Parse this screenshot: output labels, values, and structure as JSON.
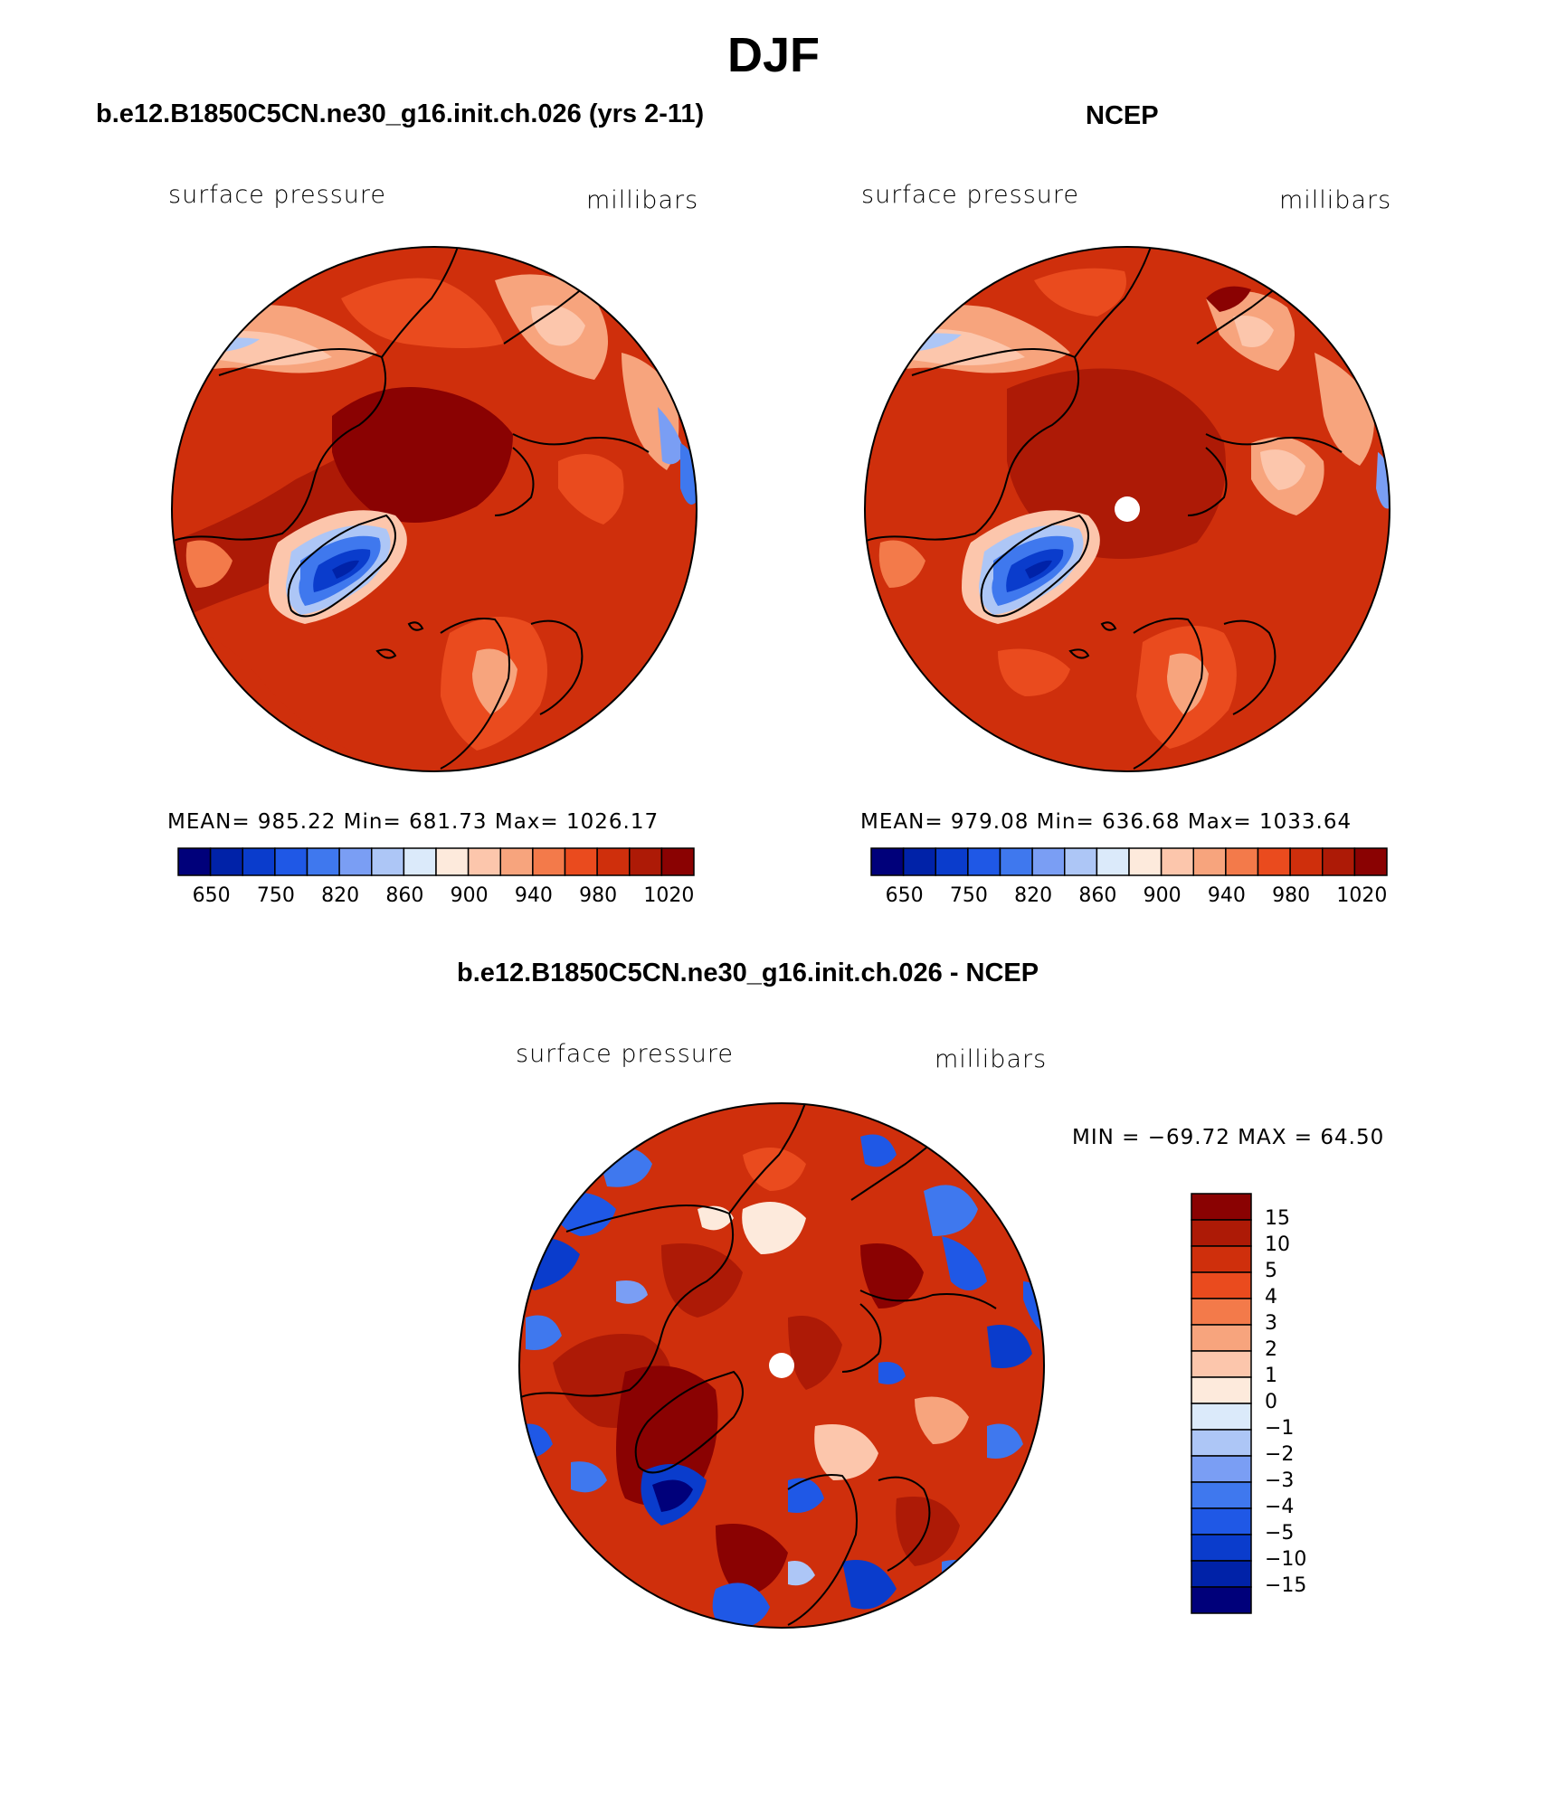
{
  "figure": {
    "title": "DJF"
  },
  "panels": [
    {
      "title": "b.e12.B1850C5CN.ne30_g16.init.ch.026 (yrs 2-11)",
      "variable": "surface pressure",
      "units": "millibars",
      "stats": "MEAN= 985.22   Min= 681.73   Max= 1026.17",
      "colorbar_ticks": [
        "650",
        "750",
        "820",
        "860",
        "900",
        "940",
        "980",
        "1020"
      ]
    },
    {
      "title": "NCEP",
      "variable": "surface pressure",
      "units": "millibars",
      "stats": "MEAN= 979.08   Min= 636.68   Max= 1033.64",
      "colorbar_ticks": [
        "650",
        "750",
        "820",
        "860",
        "900",
        "940",
        "980",
        "1020"
      ]
    },
    {
      "title": "b.e12.B1850C5CN.ne30_g16.init.ch.026 - NCEP",
      "variable": "surface pressure",
      "units": "millibars",
      "stats": "MIN = −69.72 MAX =   64.50",
      "colorbar_ticks": [
        "15",
        "10",
        "5",
        "4",
        "3",
        "2",
        "1",
        "0",
        "−1",
        "−2",
        "−3",
        "−4",
        "−5",
        "−10",
        "−15"
      ]
    }
  ],
  "colors": {
    "abs_scale": [
      "#00007a",
      "#0022a8",
      "#0a3ccc",
      "#1f58e6",
      "#3f78ee",
      "#7a9ef4",
      "#adc6f6",
      "#dbeafa",
      "#fdeadc",
      "#fcc6ac",
      "#f7a47d",
      "#f37a4a",
      "#ea4b1e",
      "#cf2f0c",
      "#ad1a06",
      "#8a0202"
    ],
    "diff_scale": [
      "#8a0202",
      "#ad1a06",
      "#cf2f0c",
      "#ea4b1e",
      "#f37a4a",
      "#f7a47d",
      "#fcc6ac",
      "#fdeadc",
      "#dbeafa",
      "#adc6f6",
      "#7a9ef4",
      "#3f78ee",
      "#1f58e6",
      "#0a3ccc",
      "#0022a8",
      "#00007a"
    ]
  }
}
